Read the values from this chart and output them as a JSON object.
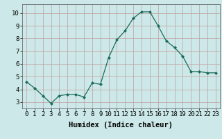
{
  "x": [
    0,
    1,
    2,
    3,
    4,
    5,
    6,
    7,
    8,
    9,
    10,
    11,
    12,
    13,
    14,
    15,
    16,
    17,
    18,
    19,
    20,
    21,
    22,
    23
  ],
  "y": [
    4.6,
    4.1,
    3.5,
    2.9,
    3.5,
    3.6,
    3.6,
    3.4,
    4.5,
    4.4,
    6.5,
    7.9,
    8.6,
    9.6,
    10.1,
    10.1,
    9.0,
    7.8,
    7.3,
    6.6,
    5.4,
    5.4,
    5.3,
    5.3
  ],
  "xlabel": "Humidex (Indice chaleur)",
  "xlim": [
    -0.5,
    23.5
  ],
  "ylim": [
    2.5,
    10.7
  ],
  "yticks": [
    3,
    4,
    5,
    6,
    7,
    8,
    9,
    10
  ],
  "xtick_labels": [
    "0",
    "1",
    "2",
    "3",
    "4",
    "5",
    "6",
    "7",
    "8",
    "9",
    "10",
    "11",
    "12",
    "13",
    "14",
    "15",
    "16",
    "17",
    "18",
    "19",
    "20",
    "21",
    "22",
    "23"
  ],
  "line_color": "#1a6b5a",
  "marker_color": "#1a6b5a",
  "bg_color": "#cce8e8",
  "grid_color": "#c0a0a0",
  "xlabel_fontsize": 7.5,
  "tick_fontsize": 6.5
}
